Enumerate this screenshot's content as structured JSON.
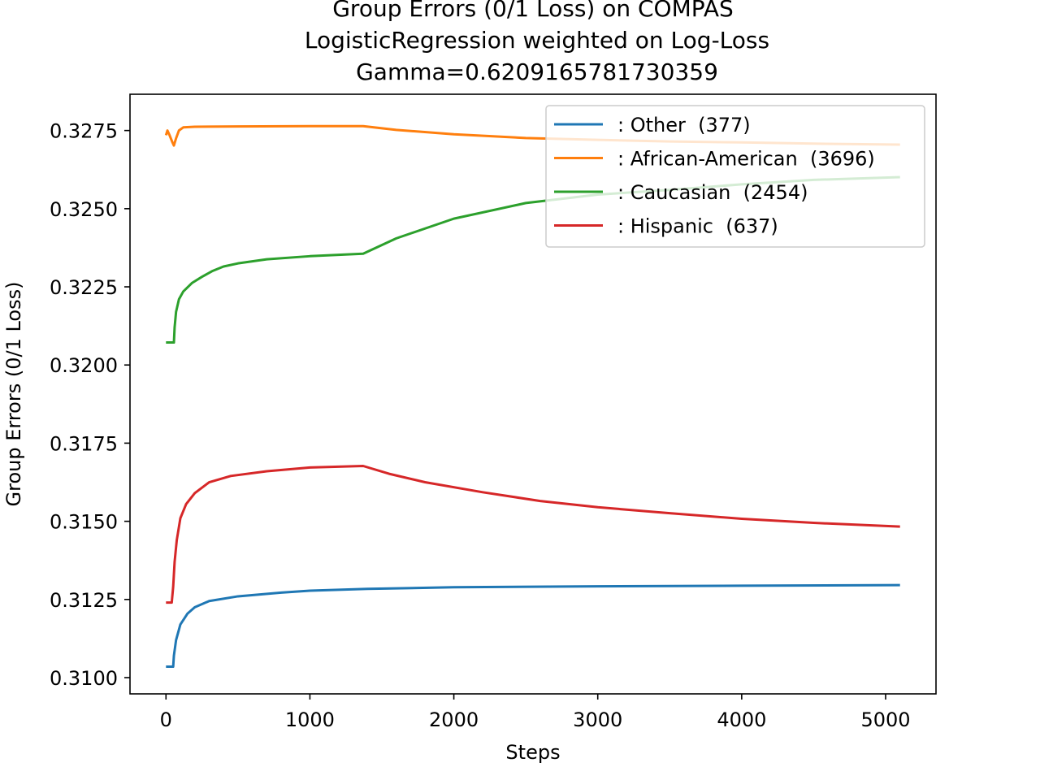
{
  "chart_data": {
    "type": "line",
    "title_lines": [
      "Group Errors (0/1 Loss) on COMPAS",
      "LogisticRegression weighted on Log-Loss",
      "Gamma=0.6209165781730359"
    ],
    "xlabel": "Steps",
    "ylabel": "Group Errors (0/1 Loss)",
    "xlim": [
      -250,
      5350
    ],
    "ylim": [
      0.30948,
      0.32866
    ],
    "xticks": [
      0,
      1000,
      2000,
      3000,
      4000,
      5000
    ],
    "xtick_labels": [
      "0",
      "1000",
      "2000",
      "3000",
      "4000",
      "5000"
    ],
    "yticks": [
      0.31,
      0.3125,
      0.315,
      0.3175,
      0.32,
      0.3225,
      0.325,
      0.3275
    ],
    "ytick_labels": [
      "0.3100",
      "0.3125",
      "0.3150",
      "0.3175",
      "0.3200",
      "0.3225",
      "0.3250",
      "0.3275"
    ],
    "grid": false,
    "legend_position": "upper right",
    "series": [
      {
        "name": ": Other  (377)",
        "color": "#1f77b4",
        "points": [
          [
            0,
            0.31035
          ],
          [
            50,
            0.31035
          ],
          [
            55,
            0.3107
          ],
          [
            70,
            0.3112
          ],
          [
            100,
            0.3117
          ],
          [
            150,
            0.31205
          ],
          [
            200,
            0.31225
          ],
          [
            300,
            0.31245
          ],
          [
            500,
            0.3126
          ],
          [
            800,
            0.31272
          ],
          [
            1000,
            0.31278
          ],
          [
            1400,
            0.31284
          ],
          [
            2000,
            0.31289
          ],
          [
            3000,
            0.31292
          ],
          [
            4000,
            0.31294
          ],
          [
            5100,
            0.31296
          ]
        ]
      },
      {
        "name": ": African-American  (3696)",
        "color": "#ff7f0e",
        "points": [
          [
            0,
            0.32735
          ],
          [
            10,
            0.3275
          ],
          [
            25,
            0.32735
          ],
          [
            45,
            0.32712
          ],
          [
            55,
            0.32702
          ],
          [
            70,
            0.32725
          ],
          [
            90,
            0.3275
          ],
          [
            120,
            0.3276
          ],
          [
            200,
            0.32762
          ],
          [
            500,
            0.32763
          ],
          [
            1000,
            0.32764
          ],
          [
            1370,
            0.32764
          ],
          [
            1600,
            0.32752
          ],
          [
            2000,
            0.32738
          ],
          [
            2500,
            0.32726
          ],
          [
            3000,
            0.3272
          ],
          [
            3500,
            0.32715
          ],
          [
            4000,
            0.32712
          ],
          [
            4500,
            0.32708
          ],
          [
            5100,
            0.32705
          ]
        ]
      },
      {
        "name": ": Caucasian  (2454)",
        "color": "#2ca02c",
        "points": [
          [
            0,
            0.32072
          ],
          [
            55,
            0.32072
          ],
          [
            60,
            0.3212
          ],
          [
            70,
            0.3217
          ],
          [
            90,
            0.3221
          ],
          [
            120,
            0.32235
          ],
          [
            180,
            0.32262
          ],
          [
            250,
            0.32282
          ],
          [
            320,
            0.323
          ],
          [
            400,
            0.32315
          ],
          [
            500,
            0.32325
          ],
          [
            700,
            0.32338
          ],
          [
            1000,
            0.32348
          ],
          [
            1370,
            0.32356
          ],
          [
            1600,
            0.32405
          ],
          [
            2000,
            0.32468
          ],
          [
            2500,
            0.32518
          ],
          [
            3000,
            0.32545
          ],
          [
            3500,
            0.3256
          ],
          [
            4000,
            0.32578
          ],
          [
            4500,
            0.32592
          ],
          [
            5100,
            0.32601
          ]
        ]
      },
      {
        "name": ": Hispanic  (637)",
        "color": "#d62728",
        "points": [
          [
            0,
            0.3124
          ],
          [
            40,
            0.3124
          ],
          [
            50,
            0.3129
          ],
          [
            60,
            0.3137
          ],
          [
            75,
            0.3144
          ],
          [
            100,
            0.3151
          ],
          [
            140,
            0.31555
          ],
          [
            200,
            0.3159
          ],
          [
            300,
            0.31625
          ],
          [
            450,
            0.31645
          ],
          [
            700,
            0.3166
          ],
          [
            1000,
            0.31672
          ],
          [
            1370,
            0.31677
          ],
          [
            1550,
            0.31652
          ],
          [
            1800,
            0.31625
          ],
          [
            2200,
            0.31593
          ],
          [
            2600,
            0.31565
          ],
          [
            3000,
            0.31545
          ],
          [
            3500,
            0.31526
          ],
          [
            4000,
            0.31508
          ],
          [
            4500,
            0.31495
          ],
          [
            5100,
            0.31483
          ]
        ]
      }
    ]
  }
}
